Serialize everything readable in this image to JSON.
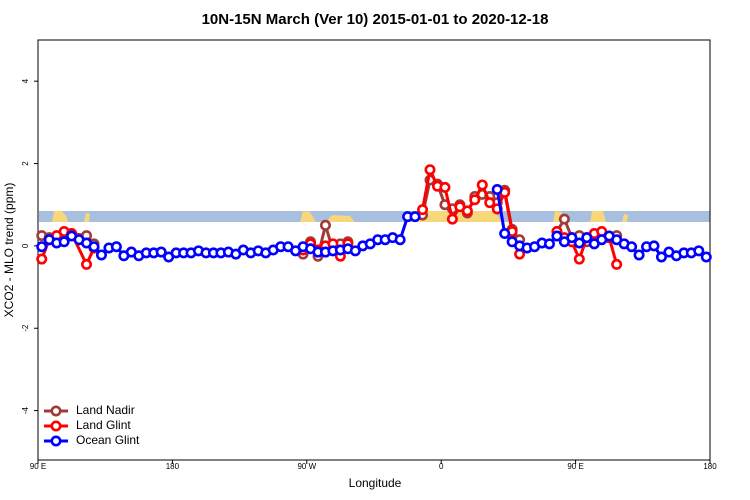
{
  "chart_data": {
    "type": "line",
    "title": "10N-15N March (Ver 10)   2015-01-01 to 2020-12-18",
    "xlabel": "Longitude",
    "ylabel": "XCO2 - MLO trend (ppm)",
    "xlim": [
      -270,
      180
    ],
    "ylim": [
      -5.2,
      5
    ],
    "xticks": [
      {
        "value": -270,
        "label": "90 E"
      },
      {
        "value": -180,
        "label": "180"
      },
      {
        "value": -90,
        "label": "90 W"
      },
      0,
      {
        "value": 90,
        "label": "90 E"
      },
      180
    ],
    "yticks": [
      -4,
      -2,
      0,
      2,
      4
    ],
    "legend": "bottom-left",
    "series": [
      {
        "name": "Land Nadir",
        "color": "#a33a3a",
        "x": [
          -267.5,
          -262.5,
          -257.5,
          -252.5,
          -247.5,
          -237.5,
          -232.5,
          -150,
          -92.5,
          -87.5,
          -82.5,
          -77.5,
          -72.5,
          -67.5,
          -62.5,
          -40,
          -12.5,
          -7.5,
          -2.5,
          2.5,
          7.5,
          12.5,
          17.5,
          22.5,
          27.5,
          32.5,
          37.5,
          42.5,
          47.5,
          52.5,
          65,
          77.5,
          82.5,
          87.5,
          92.5,
          97.5,
          102.5,
          107.5,
          112.5,
          117.5
        ],
        "values": [
          0.25,
          0.2,
          0.1,
          0.2,
          0.3,
          0.25,
          0.05,
          null,
          -0.2,
          0.1,
          -0.25,
          0.5,
          -0.1,
          0.05,
          0.1,
          null,
          0.75,
          1.6,
          1.5,
          1.0,
          0.9,
          1.0,
          0.8,
          1.2,
          1.25,
          1.2,
          1.05,
          1.35,
          0.4,
          0.15,
          null,
          0.35,
          0.65,
          0.2,
          0.25,
          0.1,
          0.2,
          0.3,
          0.2,
          0.25
        ]
      },
      {
        "name": "Land Glint",
        "color": "#ff0000",
        "x": [
          -267.5,
          -262.5,
          -257.5,
          -252.5,
          -247.5,
          -237.5,
          -232.5,
          -150,
          -92.5,
          -87.5,
          -82.5,
          -77.5,
          -72.5,
          -67.5,
          -62.5,
          -40,
          -12.5,
          -7.5,
          -2.5,
          2.5,
          7.5,
          12.5,
          17.5,
          22.5,
          27.5,
          32.5,
          37.5,
          42.5,
          47.5,
          52.5,
          65,
          77.5,
          82.5,
          87.5,
          92.5,
          97.5,
          102.5,
          107.5,
          112.5,
          117.5
        ],
        "values": [
          -0.32,
          0.15,
          0.25,
          0.35,
          0.3,
          -0.45,
          -0.05,
          null,
          -0.1,
          0.05,
          -0.1,
          0.0,
          0.05,
          -0.25,
          0.05,
          null,
          0.88,
          1.85,
          1.45,
          1.42,
          0.65,
          0.95,
          0.85,
          1.12,
          1.48,
          1.05,
          0.9,
          1.3,
          0.35,
          -0.2,
          null,
          0.35,
          0.2,
          0.1,
          -0.32,
          0.2,
          0.3,
          0.35,
          0.2,
          -0.45
        ]
      },
      {
        "name": "Ocean Glint",
        "color": "#0000ff",
        "x": [
          -267.5,
          -262.5,
          -257.5,
          -252.5,
          -247.5,
          -242.5,
          -237.5,
          -232.5,
          -227.5,
          -222.5,
          -217.5,
          -212.5,
          -207.5,
          -202.5,
          -197.5,
          -192.5,
          -187.5,
          -182.5,
          -177.5,
          -172.5,
          -167.5,
          -162.5,
          -157.5,
          -152.5,
          -147.5,
          -142.5,
          -137.5,
          -132.5,
          -127.5,
          -122.5,
          -117.5,
          -112.5,
          -107.5,
          -102.5,
          -97.5,
          -92.5,
          -87.5,
          -82.5,
          -77.5,
          -72.5,
          -67.5,
          -62.5,
          -57.5,
          -52.5,
          -47.5,
          -42.5,
          -37.5,
          -32.5,
          -27.5,
          -22.5,
          -17.5,
          10,
          37.5,
          42.5,
          47.5,
          52.5,
          57.5,
          62.5,
          67.5,
          72.5,
          77.5,
          82.5,
          87.5,
          92.5,
          97.5,
          102.5,
          107.5,
          112.5,
          117.5,
          122.5,
          127.5,
          132.5,
          137.5,
          142.5,
          147.5,
          152.5,
          157.5,
          162.5,
          167.5,
          172.5,
          177.5
        ],
        "values": [
          -0.02,
          0.15,
          0.07,
          0.1,
          0.24,
          0.15,
          0.07,
          -0.02,
          -0.22,
          -0.05,
          -0.02,
          -0.24,
          -0.15,
          -0.24,
          -0.17,
          -0.17,
          -0.15,
          -0.27,
          -0.17,
          -0.17,
          -0.17,
          -0.12,
          -0.17,
          -0.17,
          -0.17,
          -0.15,
          -0.2,
          -0.1,
          -0.17,
          -0.12,
          -0.17,
          -0.1,
          -0.02,
          -0.02,
          -0.12,
          -0.02,
          -0.07,
          -0.15,
          -0.15,
          -0.12,
          -0.1,
          -0.07,
          -0.12,
          0,
          0.05,
          0.15,
          0.15,
          0.2,
          0.15,
          0.71,
          0.71,
          null,
          1.37,
          0.3,
          0.1,
          0.0,
          -0.05,
          -0.02,
          0.07,
          0.05,
          0.24,
          0.1,
          0.2,
          0.07,
          0.2,
          0.05,
          0.15,
          0.24,
          0.15,
          0.05,
          -0.02,
          -0.22,
          -0.02,
          0,
          -0.27,
          -0.15,
          -0.24,
          -0.17,
          -0.17,
          -0.12,
          -0.27
        ]
      }
    ]
  }
}
